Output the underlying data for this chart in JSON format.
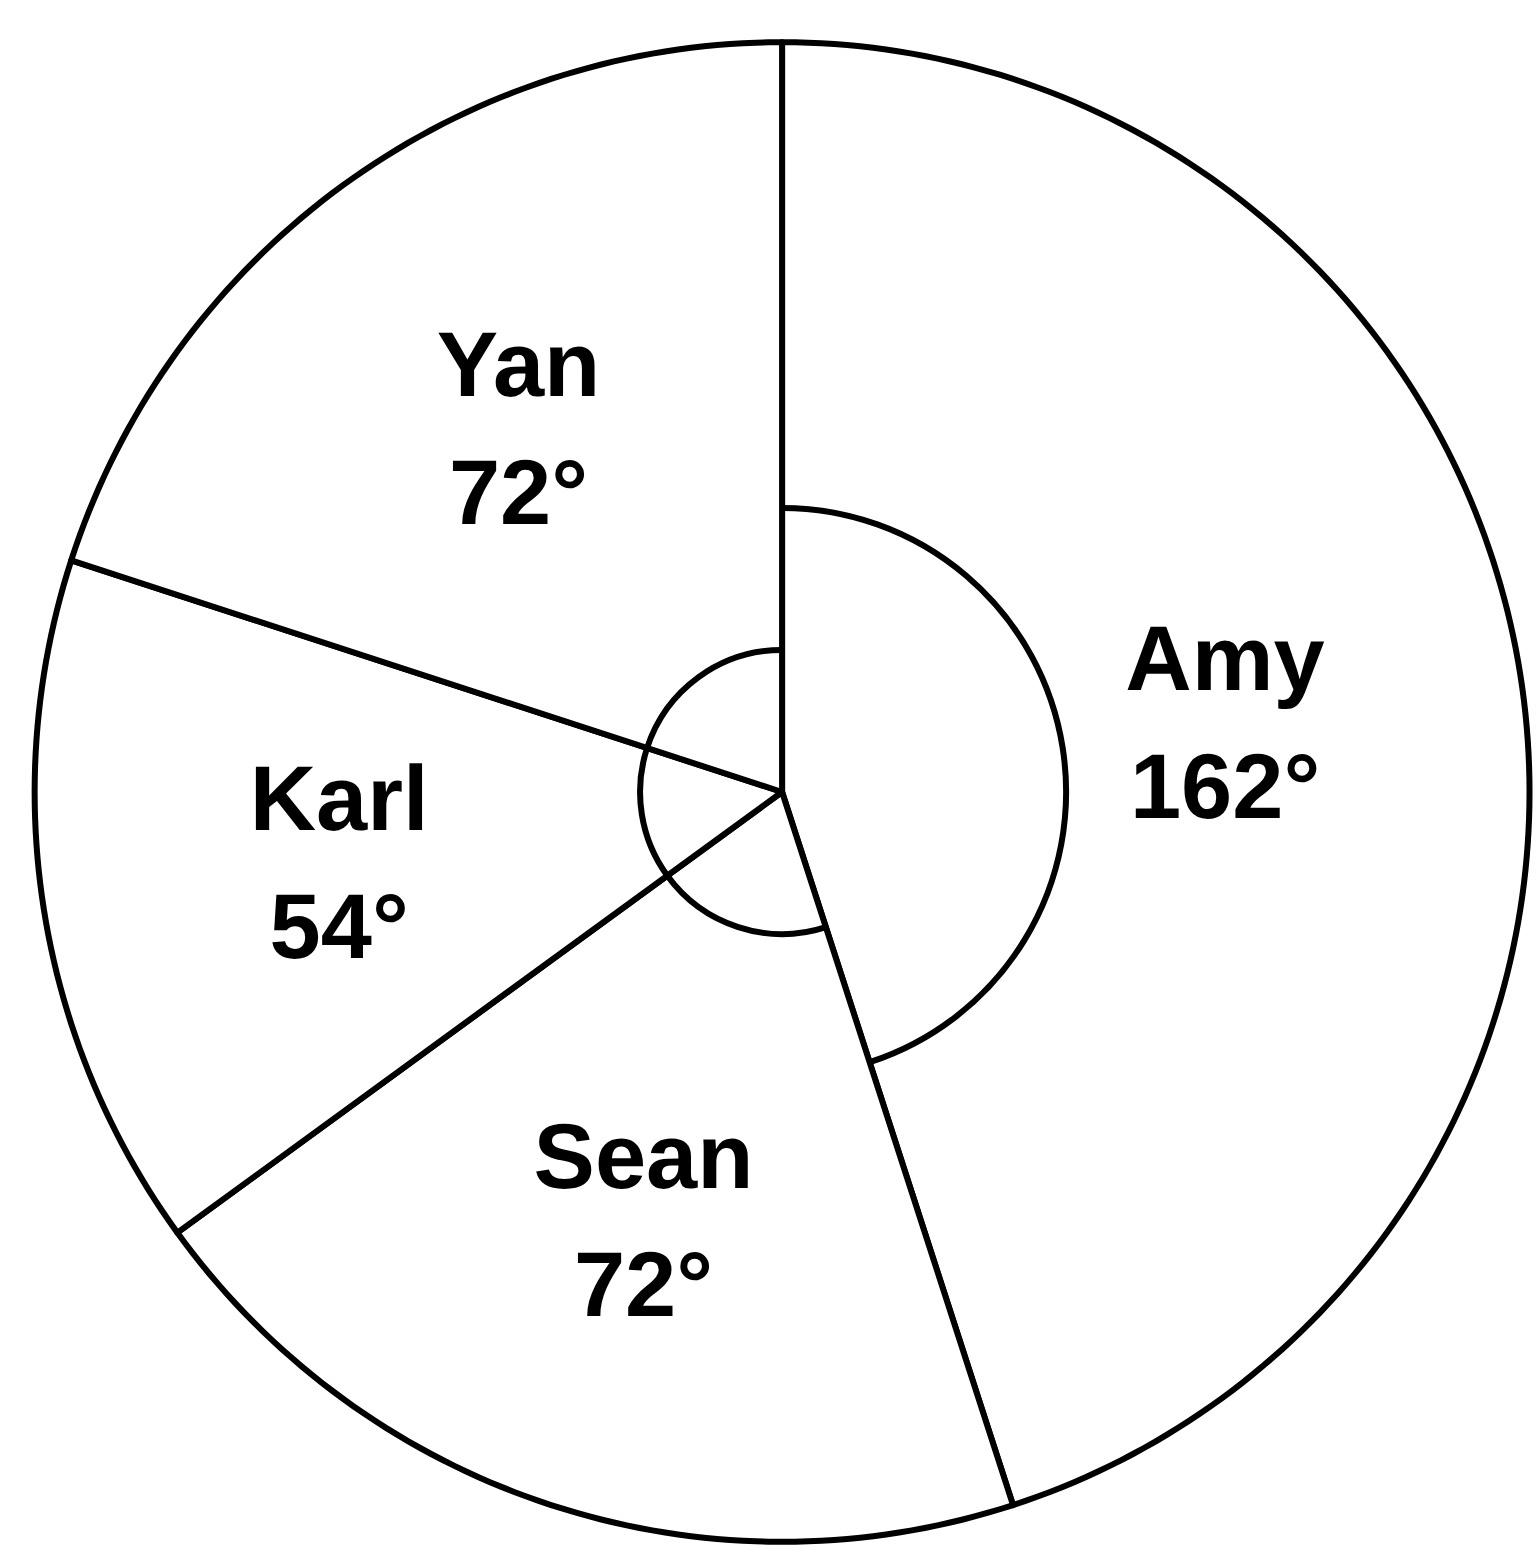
{
  "chart_data": {
    "type": "pie",
    "categories": [
      "Amy",
      "Sean",
      "Karl",
      "Yan"
    ],
    "values": [
      162,
      72,
      54,
      72
    ],
    "value_labels": [
      "162°",
      "72°",
      "54°",
      "72°"
    ],
    "colors": [
      "#ffffff",
      "#ffffff",
      "#ffffff",
      "#ffffff"
    ]
  }
}
